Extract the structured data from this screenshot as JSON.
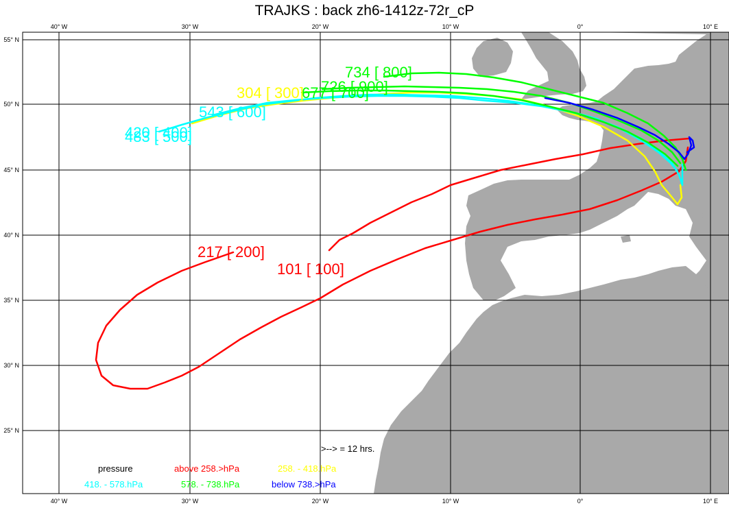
{
  "title": "TRAJKS : back zh6-1412z-72r_cP",
  "colors": {
    "land": "#a9a9a9",
    "grid": "#000000",
    "red": "#ff0000",
    "yellow": "#ffff00",
    "cyan": "#00ffff",
    "green": "#00ff00",
    "blue": "#0000ff"
  },
  "axes": {
    "lon_labels": [
      "40° W",
      "30° W",
      "20° W",
      "10° W",
      "0°",
      "10° E"
    ],
    "lat_labels": [
      "55° N",
      "50° N",
      "45° N",
      "40° N",
      "35° N",
      "30° N",
      "25° N"
    ]
  },
  "trajectory_labels": [
    {
      "text": "734 [ 800]",
      "color": "green"
    },
    {
      "text": "726 [ 900]",
      "color": "green"
    },
    {
      "text": "677 [ 700]",
      "color": "green"
    },
    {
      "text": "304 [ 300]",
      "color": "yellow"
    },
    {
      "text": "543 [ 600]",
      "color": "cyan"
    },
    {
      "text": "420 [ 400]",
      "color": "cyan"
    },
    {
      "text": "483 [ 500]",
      "color": "cyan"
    },
    {
      "text": "217 [ 200]",
      "color": "red"
    },
    {
      "text": "101 [ 100]",
      "color": "red"
    }
  ],
  "legend": {
    "arrow_note": ">--> = 12 hrs.",
    "pressure": "pressure",
    "above": "above  258.>hPa",
    "band1": "258. -   418.hPa",
    "band2": "418. -   578.hPa",
    "band3": "578. -   738.hPa",
    "below": "below  738.>hPa"
  }
}
